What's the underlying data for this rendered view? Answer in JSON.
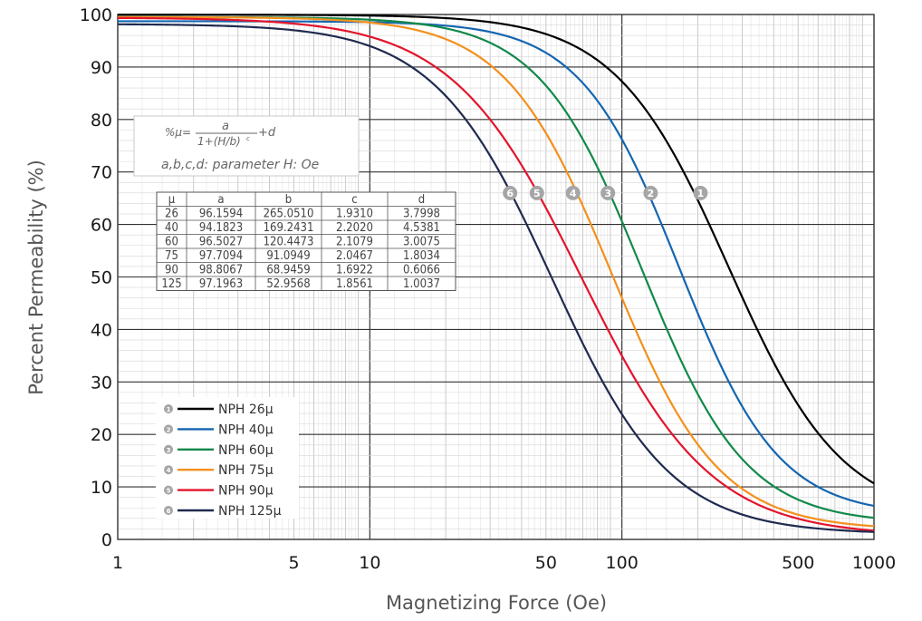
{
  "chart_data": {
    "type": "line",
    "x_scale": "log",
    "xlim": [
      1,
      1000
    ],
    "ylim": [
      0,
      100
    ],
    "xlabel": "Magnetizing Force (Oe)",
    "ylabel": "Percent Permeability (%)",
    "x_ticks": [
      {
        "value": 1,
        "label": "1"
      },
      {
        "value": 5,
        "label": "5"
      },
      {
        "value": 10,
        "label": "10"
      },
      {
        "value": 50,
        "label": "50"
      },
      {
        "value": 100,
        "label": "100"
      },
      {
        "value": 500,
        "label": "500"
      },
      {
        "value": 1000,
        "label": "1000"
      }
    ],
    "y_ticks": [
      0,
      10,
      20,
      30,
      40,
      50,
      60,
      70,
      80,
      90,
      100
    ],
    "grid": true,
    "formula": {
      "prefix": "%μ=",
      "numerator": "a",
      "denominator": "1+(H/b)",
      "exponent": "c",
      "suffix": "+d",
      "note": "a,b,c,d: parameter  H: Oe"
    },
    "table": {
      "headers": [
        "μ",
        "a",
        "b",
        "c",
        "d"
      ],
      "rows": [
        [
          "26",
          "96.1594",
          "265.0510",
          "1.9310",
          "3.7998"
        ],
        [
          "40",
          "94.1823",
          "169.2431",
          "2.2020",
          "4.5381"
        ],
        [
          "60",
          "96.5027",
          "120.4473",
          "2.1079",
          "3.0075"
        ],
        [
          "75",
          "97.7094",
          "91.0949",
          "2.0467",
          "1.8034"
        ],
        [
          "90",
          "98.8067",
          "68.9459",
          "1.6922",
          "0.6066"
        ],
        [
          "125",
          "97.1963",
          "52.9568",
          "1.8561",
          "1.0037"
        ]
      ]
    },
    "series": [
      {
        "name": "NPH 26μ",
        "marker": "1",
        "color": "#000000",
        "a": 96.1594,
        "b": 265.051,
        "c": 1.931,
        "d": 3.7998
      },
      {
        "name": "NPH 40μ",
        "marker": "2",
        "color": "#1565b0",
        "a": 94.1823,
        "b": 169.2431,
        "c": 2.202,
        "d": 4.5381
      },
      {
        "name": "NPH 60μ",
        "marker": "3",
        "color": "#12894a",
        "a": 96.5027,
        "b": 120.4473,
        "c": 2.1079,
        "d": 3.0075
      },
      {
        "name": "NPH 75μ",
        "marker": "4",
        "color": "#f3901c",
        "a": 97.7094,
        "b": 91.0949,
        "c": 2.0467,
        "d": 1.8034
      },
      {
        "name": "NPH 90μ",
        "marker": "5",
        "color": "#e3142b",
        "a": 98.8067,
        "b": 68.9459,
        "c": 1.6922,
        "d": 0.6066
      },
      {
        "name": "NPH 125μ",
        "marker": "6",
        "color": "#1f2a4f",
        "a": 97.1963,
        "b": 52.9568,
        "c": 1.8561,
        "d": 1.0037
      }
    ],
    "curve_markers": [
      {
        "marker": "6",
        "x": 36,
        "y": 66
      },
      {
        "marker": "5",
        "x": 46,
        "y": 66
      },
      {
        "marker": "4",
        "x": 64,
        "y": 66
      },
      {
        "marker": "3",
        "x": 88,
        "y": 66
      },
      {
        "marker": "2",
        "x": 130,
        "y": 66
      },
      {
        "marker": "1",
        "x": 205,
        "y": 66
      }
    ],
    "marker_color": "#a6a6a6"
  }
}
